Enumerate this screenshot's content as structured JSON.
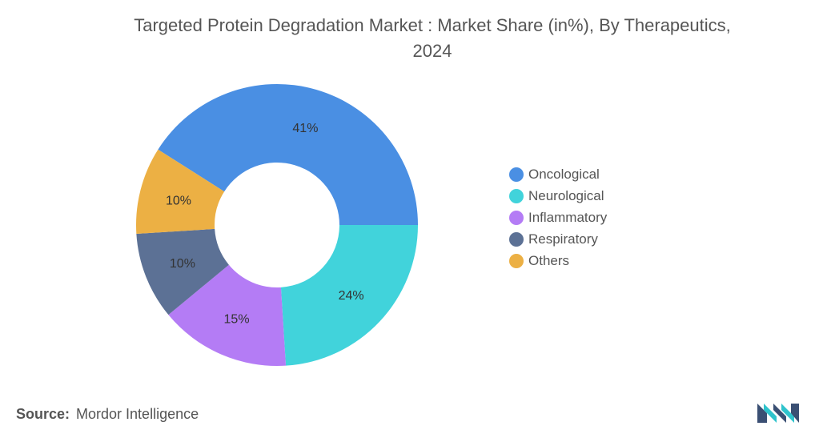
{
  "title_line1": "Targeted Protein Degradation Market : Market Share (in%), By Therapeutics,",
  "title_line2": "2024",
  "chart_data": {
    "type": "pie",
    "title": "Targeted Protein Degradation Market : Market Share (in%), By Therapeutics, 2024",
    "categories": [
      "Oncological",
      "Neurological",
      "Inflammatory",
      "Respiratory",
      "Others"
    ],
    "values": [
      41,
      24,
      15,
      10,
      10
    ],
    "labels": [
      "41%",
      "24%",
      "15%",
      "10%",
      "10%"
    ],
    "colors": [
      "#4A8FE3",
      "#41D3DB",
      "#B47CF5",
      "#5C7195",
      "#ECB044"
    ],
    "legend_position": "right"
  },
  "source_label": "Source:",
  "source_value": "Mordor Intelligence"
}
